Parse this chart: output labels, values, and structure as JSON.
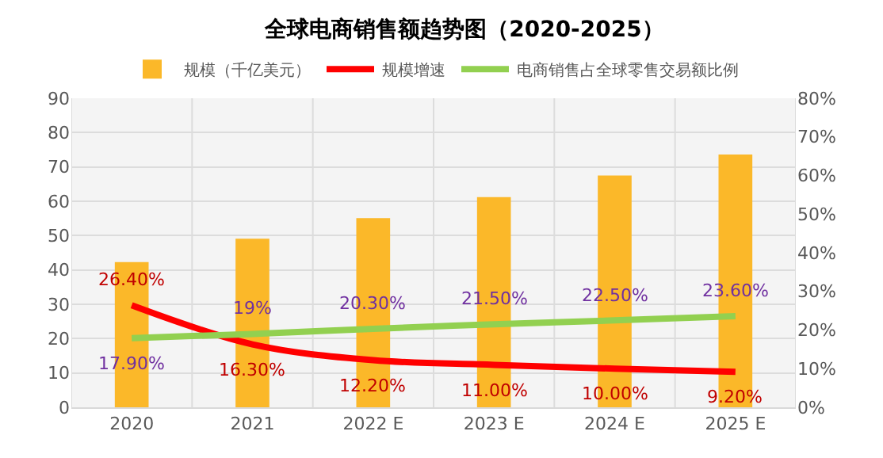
{
  "chart_data": {
    "type": "bar",
    "title": "全球电商销售额趋势图（2020-2025）",
    "categories": [
      "2020",
      "2021",
      "2022 E",
      "2023 E",
      "2024 E",
      "2025 E"
    ],
    "series": [
      {
        "name": "规模（千亿美元）",
        "color": "#fbb829",
        "values": [
          42.3,
          49.1,
          55.1,
          61.2,
          67.5,
          73.6
        ]
      },
      {
        "name": "规模增速",
        "type": "line",
        "axis": "y2",
        "color": "#ff0000",
        "values": [
          26.4,
          16.3,
          12.2,
          11.0,
          10.0,
          9.2
        ],
        "value_labels": [
          "26.40%",
          "16.30%",
          "12.20%",
          "11.00%",
          "10.00%",
          "9.20%"
        ]
      },
      {
        "name": "电商销售占全球零售交易额比例",
        "type": "line",
        "axis": "y2",
        "color": "#92d050",
        "values": [
          17.9,
          19,
          20.3,
          21.5,
          22.5,
          23.6
        ],
        "value_labels": [
          "17.90%",
          "19%",
          "20.30%",
          "21.50%",
          "22.50%",
          "23.60%"
        ]
      }
    ],
    "ylim": [
      0,
      90
    ],
    "yticks": [
      0,
      10,
      20,
      30,
      40,
      50,
      60,
      70,
      80,
      90
    ],
    "y2lim": [
      0,
      80
    ],
    "y2ticks": [
      {
        "value": 0,
        "label": "0%"
      },
      {
        "value": 10,
        "label": "10%"
      },
      {
        "value": 20,
        "label": "20%"
      },
      {
        "value": 30,
        "label": "30%"
      },
      {
        "value": 40,
        "label": "40%"
      },
      {
        "value": 50,
        "label": "50%"
      },
      {
        "value": 60,
        "label": "60%"
      },
      {
        "value": 70,
        "label": "70%"
      },
      {
        "value": 80,
        "label": "80%"
      }
    ],
    "grid": true,
    "legend": "top",
    "marker": "none",
    "line_style": "solid"
  }
}
